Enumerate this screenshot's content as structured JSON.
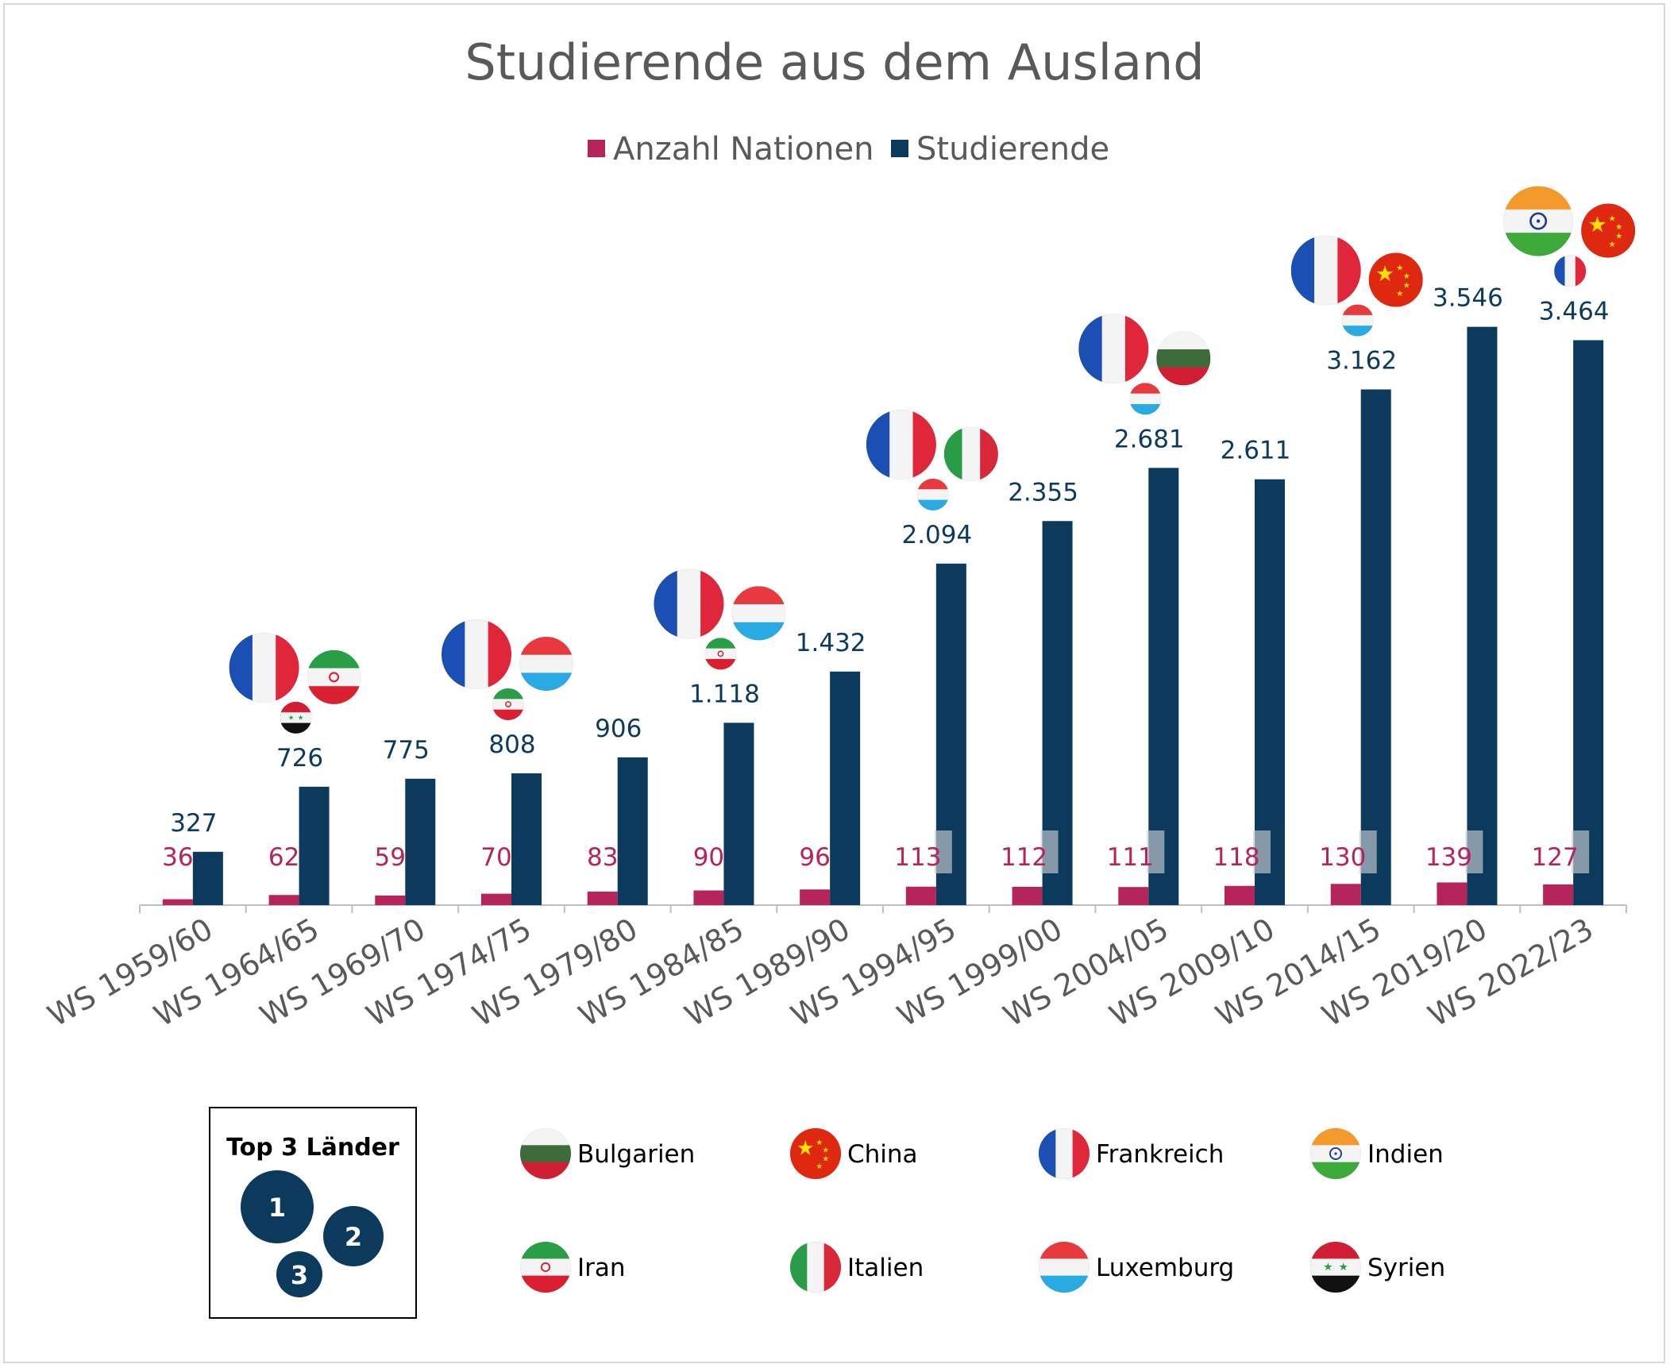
{
  "chart_data": {
    "type": "bar",
    "title": "Studierende aus dem Ausland",
    "legend_position": "top",
    "categories": [
      "WS 1959/60",
      "WS 1964/65",
      "WS 1969/70",
      "WS 1974/75",
      "WS 1979/80",
      "WS 1984/85",
      "WS 1989/90",
      "WS 1994/95",
      "WS 1999/00",
      "WS 2004/05",
      "WS 2009/10",
      "WS 2014/15",
      "WS 2019/20",
      "WS 2022/23"
    ],
    "series": [
      {
        "name": "Anzahl Nationen",
        "color": "#b5245a",
        "values": [
          36,
          62,
          59,
          70,
          83,
          90,
          96,
          113,
          112,
          111,
          118,
          130,
          139,
          127
        ],
        "labels": [
          "36",
          "62",
          "59",
          "70",
          "83",
          "90",
          "96",
          "113",
          "112",
          "111",
          "118",
          "130",
          "139",
          "127"
        ]
      },
      {
        "name": "Studierende",
        "color": "#0b3a5c",
        "values": [
          327,
          726,
          775,
          808,
          906,
          1118,
          1432,
          2094,
          2355,
          2681,
          2611,
          3162,
          3546,
          3464
        ],
        "labels": [
          "327",
          "726",
          "775",
          "808",
          "906",
          "1.118",
          "1.432",
          "2.094",
          "2.355",
          "2.681",
          "2.611",
          "3.162",
          "3.546",
          "3.464"
        ]
      }
    ],
    "ylim": [
      0,
      3700
    ],
    "grid": false,
    "top3": [
      null,
      [
        "Frankreich",
        "Iran",
        "Syrien"
      ],
      null,
      [
        "Frankreich",
        "Luxemburg",
        "Iran"
      ],
      null,
      [
        "Frankreich",
        "Luxemburg",
        "Iran"
      ],
      null,
      [
        "Frankreich",
        "Italien",
        "Luxemburg"
      ],
      null,
      [
        "Frankreich",
        "Bulgarien",
        "Luxemburg"
      ],
      null,
      [
        "Frankreich",
        "China",
        "Luxemburg"
      ],
      null,
      [
        "Indien",
        "China",
        "Frankreich"
      ]
    ]
  },
  "key": {
    "title": "Top 3 Länder",
    "ranks": [
      "1",
      "2",
      "3"
    ]
  },
  "flag_legend": [
    {
      "name": "Bulgarien",
      "icon": "bulgaria-flag-icon"
    },
    {
      "name": "China",
      "icon": "china-flag-icon"
    },
    {
      "name": "Frankreich",
      "icon": "france-flag-icon"
    },
    {
      "name": "Indien",
      "icon": "india-flag-icon"
    },
    {
      "name": "Iran",
      "icon": "iran-flag-icon"
    },
    {
      "name": "Italien",
      "icon": "italy-flag-icon"
    },
    {
      "name": "Luxemburg",
      "icon": "luxembourg-flag-icon"
    },
    {
      "name": "Syrien",
      "icon": "syria-flag-icon"
    }
  ]
}
